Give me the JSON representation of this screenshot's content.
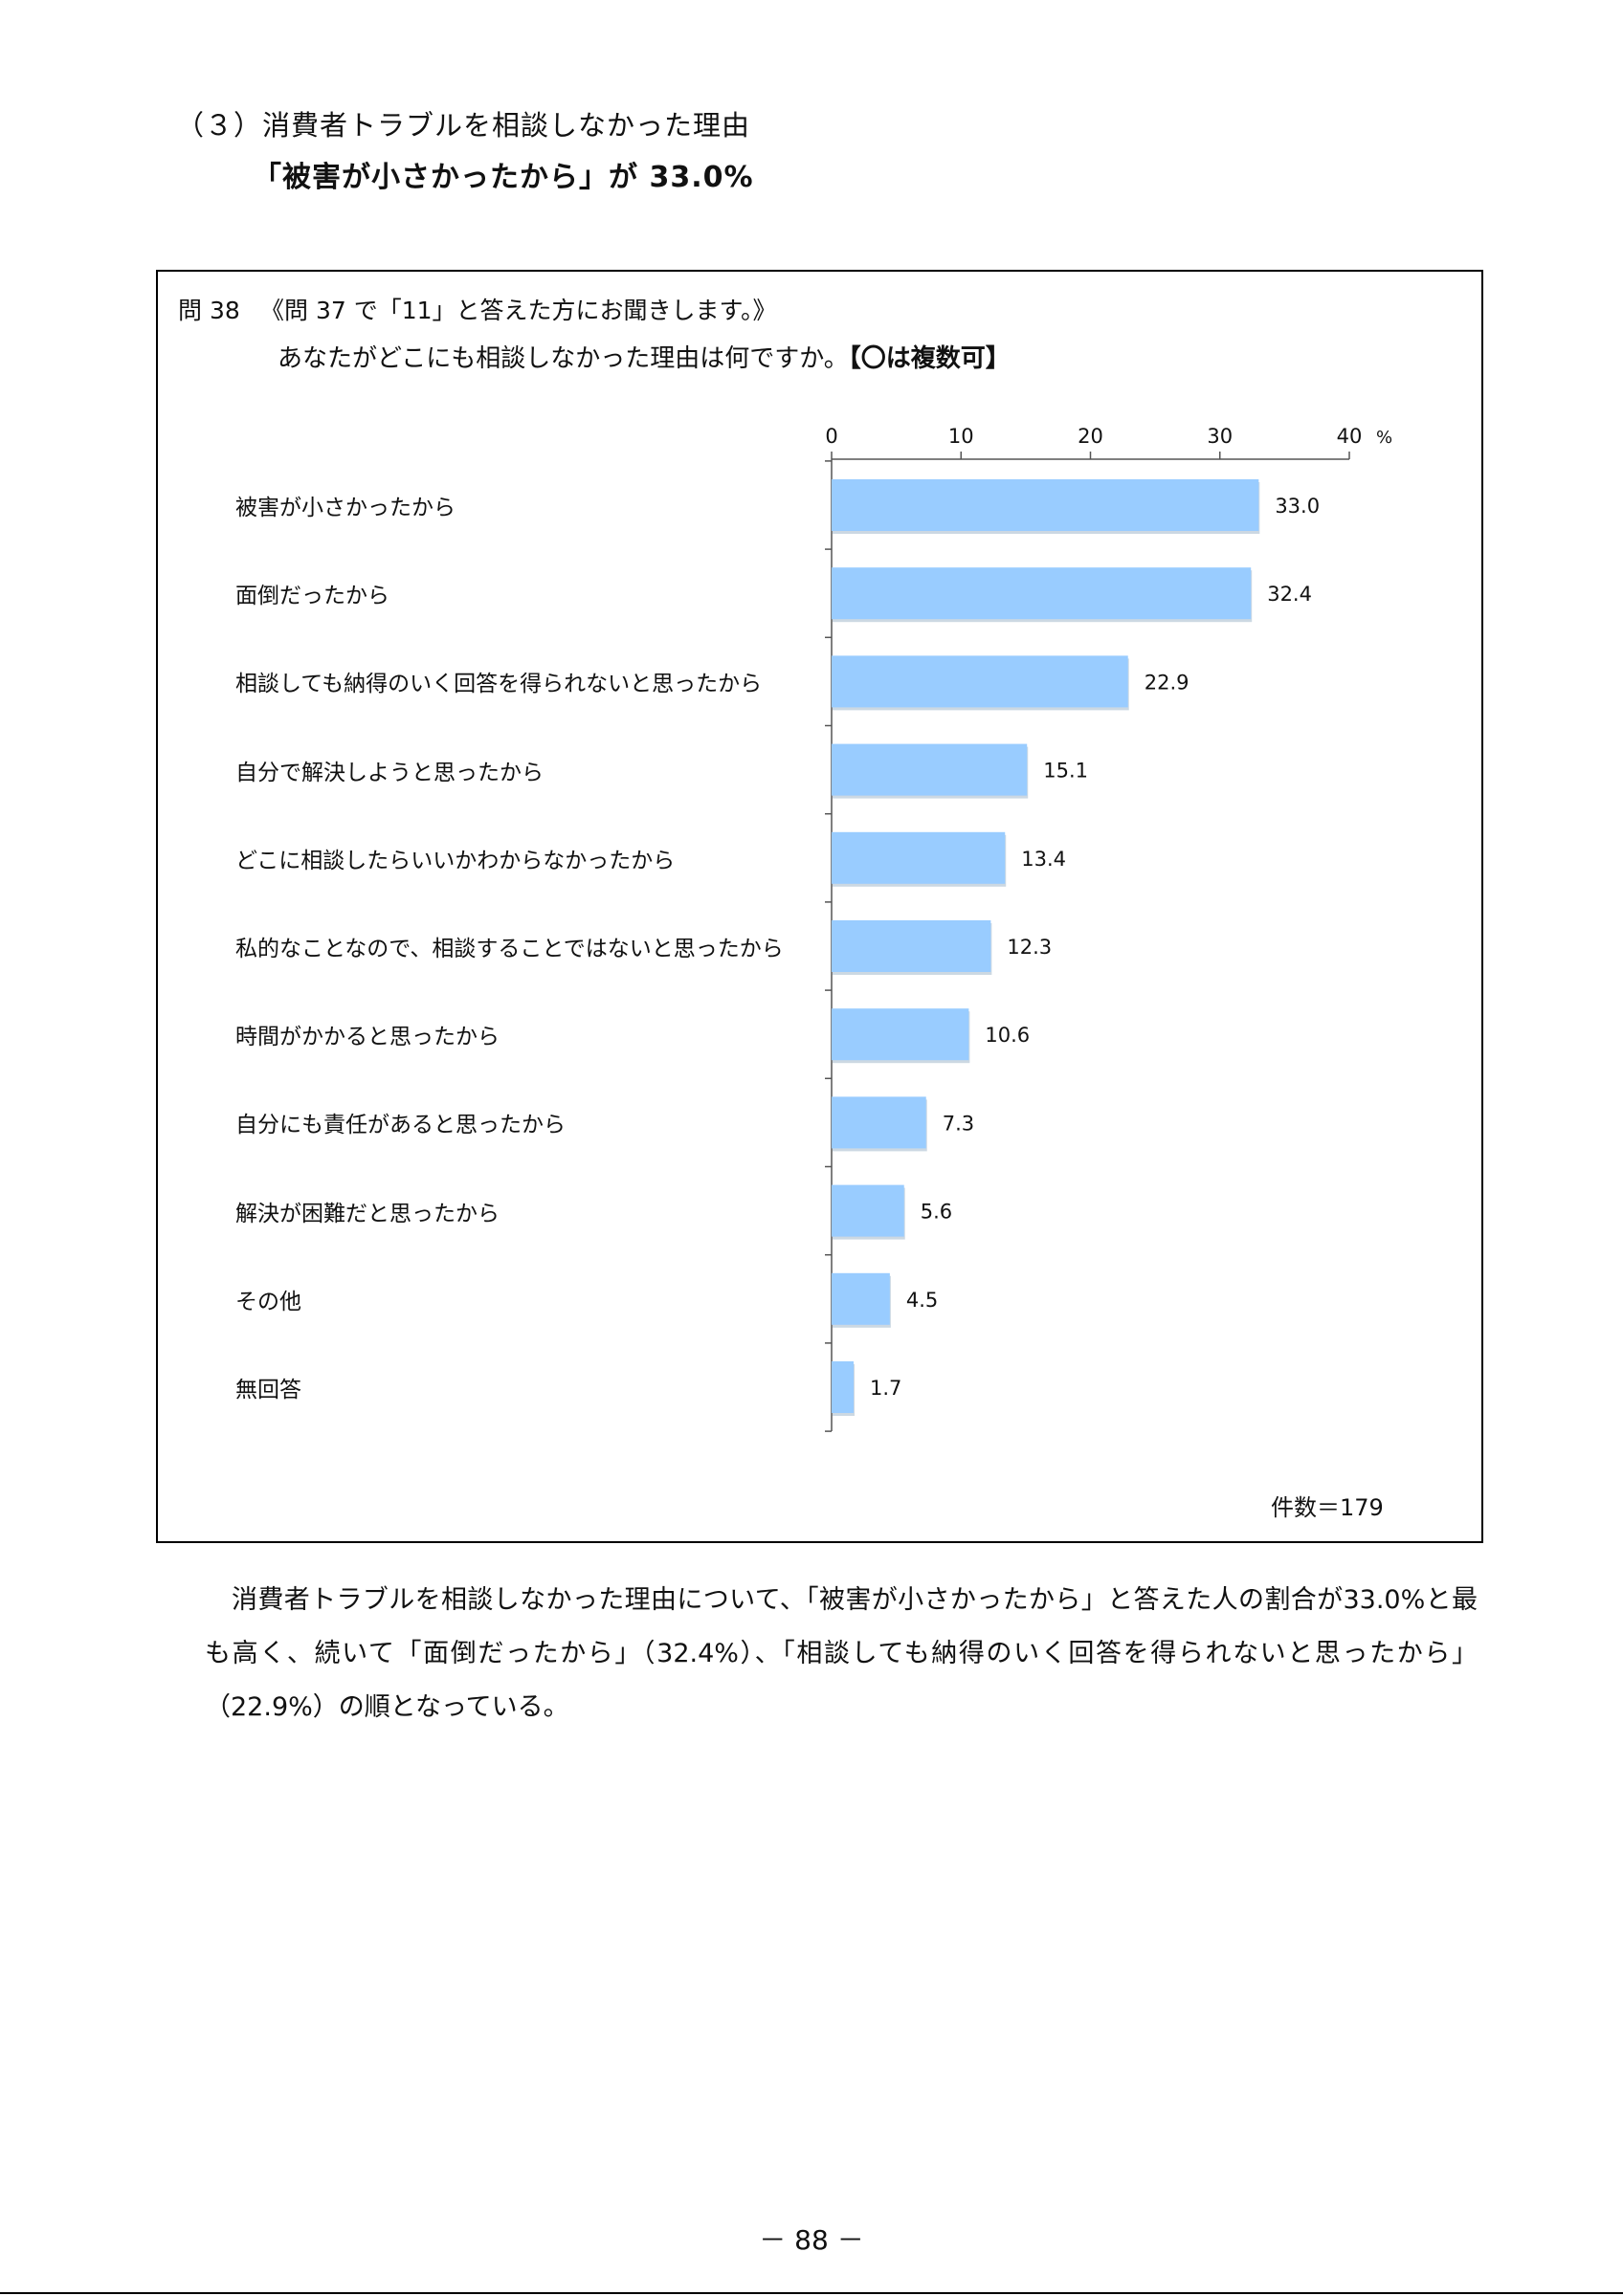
{
  "section": {
    "heading": "（３）消費者トラブルを相談しなかった理由",
    "subheading": "「被害が小さかったから」が 33.0%"
  },
  "question": {
    "number": "問 38",
    "condition": "《問 37 で「11」と答えた方にお聞きします。》",
    "text": "あなたがどこにも相談しなかった理由は何ですか。",
    "note": "【〇は複数可】"
  },
  "chart_data": {
    "type": "bar",
    "orientation": "horizontal",
    "categories": [
      "被害が小さかったから",
      "面倒だったから",
      "相談しても納得のいく回答を得られないと思ったから",
      "自分で解決しようと思ったから",
      "どこに相談したらいいかわからなかったから",
      "私的なことなので、相談することではないと思ったから",
      "時間がかかると思ったから",
      "自分にも責任があると思ったから",
      "解決が困難だと思ったから",
      "その他",
      "無回答"
    ],
    "values": [
      33.0,
      32.4,
      22.9,
      15.1,
      13.4,
      12.3,
      10.6,
      7.3,
      5.6,
      4.5,
      1.7
    ],
    "value_labels": [
      "33.0",
      "32.4",
      "22.9",
      "15.1",
      "13.4",
      "12.3",
      "10.6",
      "7.3",
      "5.6",
      "4.5",
      "1.7"
    ],
    "xlim": [
      0,
      40
    ],
    "x_ticks": [
      0,
      10,
      20,
      30,
      40
    ],
    "x_tick_labels": [
      "0",
      "10",
      "20",
      "30",
      "40"
    ],
    "unit": "%",
    "grid": false,
    "bar_color": "#99CCFF",
    "count_label": "件数＝179"
  },
  "body": {
    "paragraph": "消費者トラブルを相談しなかった理由について、「被害が小さかったから」と答えた人の割合が33.0%と最も高く、続いて「面倒だったから」（32.4%）、「相談しても納得のいく回答を得られないと思ったから」（22.9%）の順となっている。"
  },
  "footer": {
    "page_number": "－ 88 －"
  }
}
